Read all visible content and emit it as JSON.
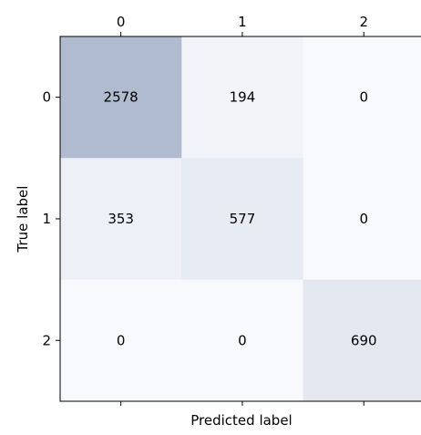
{
  "chart_data": {
    "type": "heatmap",
    "title": "",
    "xlabel": "Predicted label",
    "ylabel": "True label",
    "x_categories": [
      "0",
      "1",
      "2"
    ],
    "y_categories": [
      "0",
      "1",
      "2"
    ],
    "x_ticks_position": "top",
    "values": [
      [
        2578,
        194,
        0
      ],
      [
        353,
        577,
        0
      ],
      [
        0,
        0,
        690
      ]
    ],
    "value_range": [
      0,
      2578
    ],
    "colormap": {
      "low": "#f7f9fd",
      "high": "#b0bbd0"
    },
    "grid": false,
    "colorbar": false
  }
}
